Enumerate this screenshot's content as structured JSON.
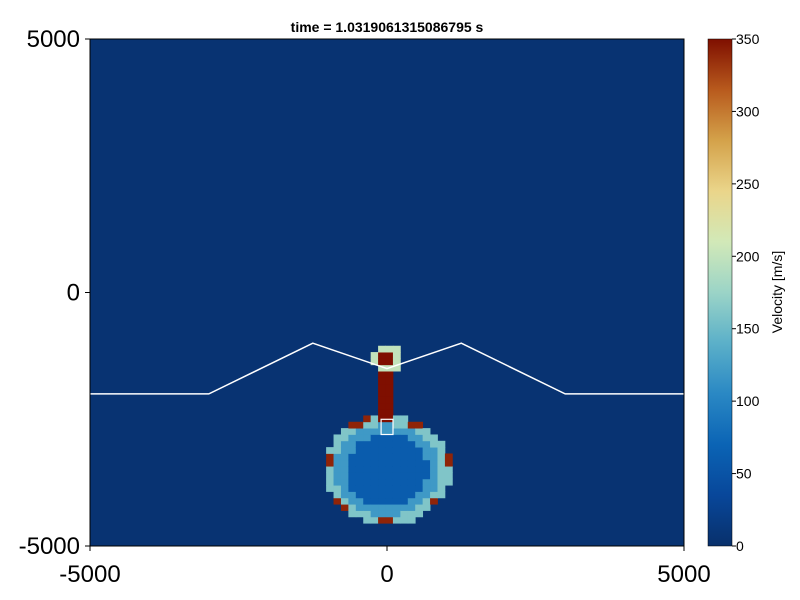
{
  "chart_data": {
    "type": "heatmap",
    "title": "time = 1.0319061315086795 s",
    "xlim": [
      -5000,
      5000
    ],
    "ylim": [
      -5000,
      5000
    ],
    "xticks": [
      "-5000",
      "0",
      "5000"
    ],
    "yticks": [
      "5000",
      "0",
      "-5000"
    ],
    "grid": false,
    "background_value": 5,
    "colorbar": {
      "label": "Velocity [m/s]",
      "range": [
        0,
        350
      ],
      "ticks": [
        "0",
        "50",
        "100",
        "150",
        "200",
        "250",
        "300",
        "350"
      ],
      "colormap": [
        "#08306b",
        "#08479a",
        "#0b64b5",
        "#2a88c4",
        "#5bb0c9",
        "#9bd4c7",
        "#d2e9b8",
        "#ead58a",
        "#d4a24a",
        "#b85a1d",
        "#7f0f00"
      ]
    },
    "terrain_outline": {
      "color": "#ffffff",
      "x": [
        -5000,
        -3000,
        -1250,
        0,
        1250,
        3000,
        5000
      ],
      "y": [
        -2000,
        -2000,
        -1000,
        -1500,
        -1000,
        -2000,
        -2000
      ]
    },
    "vent_box": {
      "color": "#ffffff",
      "x": [
        -100,
        100
      ],
      "y": [
        -2800,
        -2500
      ]
    },
    "features": [
      {
        "kind": "ring",
        "center": [
          0,
          -3500
        ],
        "radius": 950,
        "thickness": 250,
        "inner_value": 60,
        "rim_value": 160,
        "edge_value": 340
      },
      {
        "kind": "conduit",
        "x": [
          -150,
          150
        ],
        "y": [
          -2600,
          -1400
        ],
        "value": 350
      },
      {
        "kind": "plume_cap",
        "center": [
          0,
          -1300
        ],
        "radius": 280,
        "value": 300
      }
    ]
  }
}
